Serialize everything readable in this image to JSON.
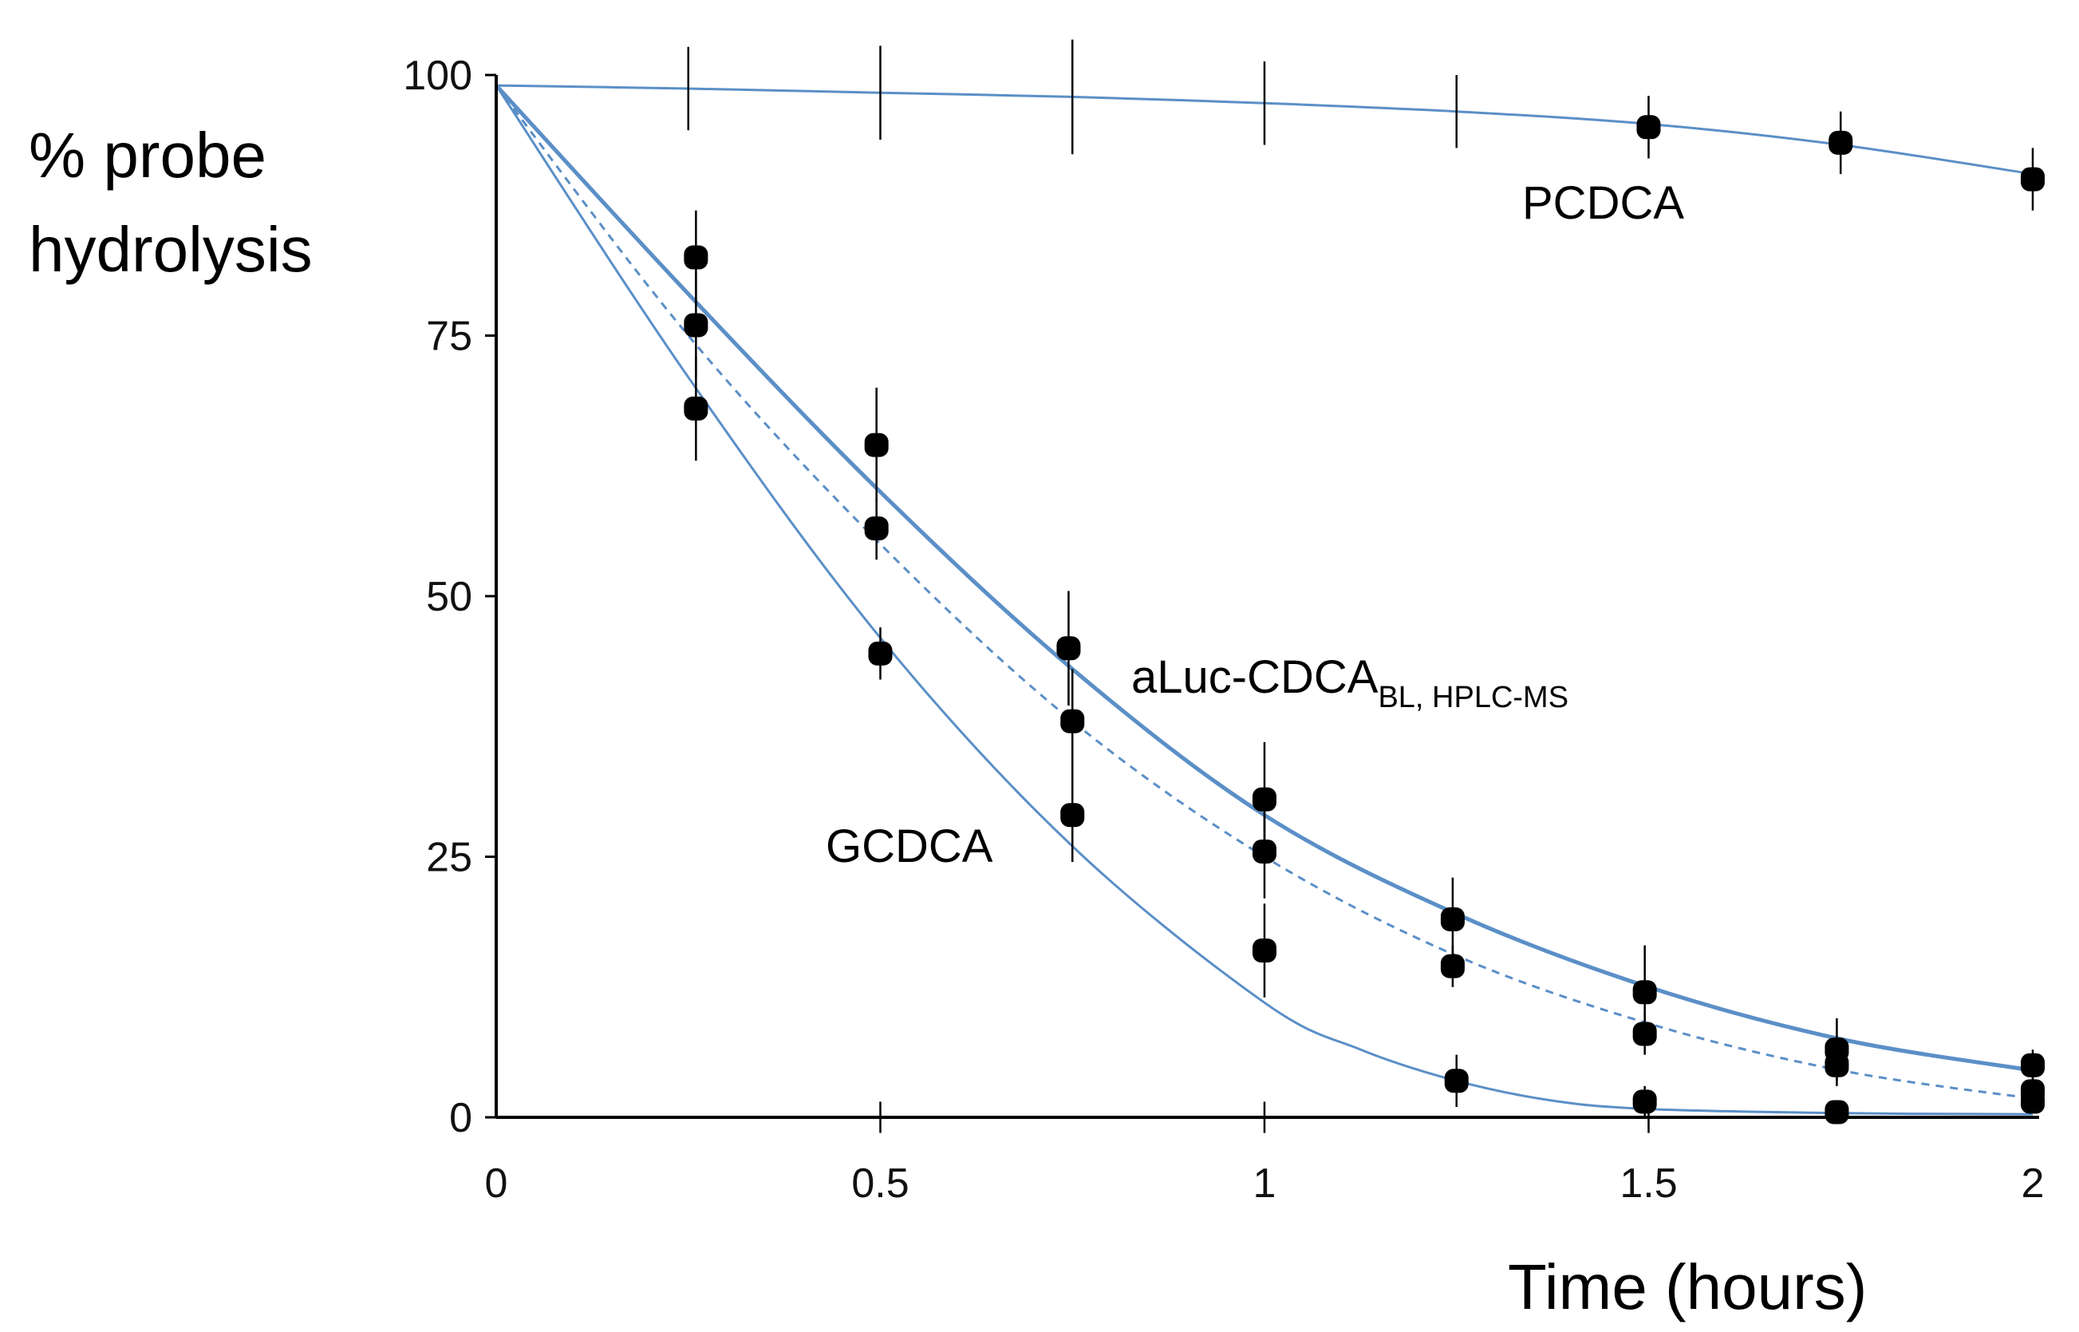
{
  "chart_data": {
    "type": "scatter",
    "title": "",
    "xlabel": "Time (hours)",
    "ylabel": "% probe hydrolysis",
    "ylabel_lines": [
      "% probe",
      "hydrolysis"
    ],
    "xlim": [
      0,
      2
    ],
    "ylim": [
      0,
      100
    ],
    "x_ticks": [
      0,
      0.5,
      1,
      1.5,
      2
    ],
    "x_tick_labels": [
      "0",
      "0.5",
      "1",
      "1.5",
      "2"
    ],
    "y_ticks": [
      0,
      25,
      50,
      75,
      100
    ],
    "y_tick_labels": [
      "0",
      "25",
      "50",
      "75",
      "100"
    ],
    "grid": false,
    "colors": {
      "curve": "#5b8fc7",
      "points": "#000000",
      "errorbars": "#000000"
    },
    "series_labels": {
      "pcdca": "PCDCA",
      "aluc_main": "aLuc-CDCA",
      "aluc_sub": "BL, HPLC-MS",
      "gcdca": "GCDCA"
    },
    "curves": [
      {
        "id": "pcdca",
        "style": "solid",
        "x": [
          0,
          0.25,
          0.5,
          0.75,
          1,
          1.25,
          1.5,
          1.75,
          2
        ],
        "y": [
          99,
          98.7,
          98.3,
          97.9,
          97.3,
          96.5,
          95.3,
          93.3,
          90.5
        ]
      },
      {
        "id": "aluc",
        "style": "solid",
        "x": [
          0,
          0.25,
          0.5,
          0.75,
          1,
          1.25,
          1.5,
          1.75,
          2
        ],
        "y": [
          99,
          79,
          60,
          43,
          29,
          19.5,
          12.5,
          7.5,
          4.5
        ]
      },
      {
        "id": "aluc-ref",
        "style": "dashed",
        "x": [
          0,
          0.25,
          0.5,
          0.75,
          1,
          1.25,
          1.5,
          1.75,
          2
        ],
        "y": [
          99,
          75,
          55,
          38,
          25,
          15.5,
          9,
          4.5,
          1.8
        ]
      },
      {
        "id": "gcdca",
        "style": "solid",
        "x": [
          0,
          0.25,
          0.5,
          0.75,
          1,
          1.125,
          1.25,
          1.375,
          1.5,
          1.75,
          2
        ],
        "y": [
          99,
          71,
          46,
          26,
          11,
          6.5,
          3.5,
          1.6,
          0.8,
          0.4,
          0.3
        ]
      }
    ],
    "points": [
      {
        "x": 0.26,
        "y": 82.5,
        "err": 4.5
      },
      {
        "x": 0.26,
        "y": 76,
        "err": 5
      },
      {
        "x": 0.26,
        "y": 68,
        "err": 5
      },
      {
        "x": 0.495,
        "y": 64.5,
        "err": 5.5
      },
      {
        "x": 0.495,
        "y": 56.5,
        "err": 3
      },
      {
        "x": 0.5,
        "y": 44.5,
        "err": 2.5
      },
      {
        "x": 0.745,
        "y": 45,
        "err": 5.5
      },
      {
        "x": 0.75,
        "y": 38,
        "err": 5
      },
      {
        "x": 0.75,
        "y": 29,
        "err": 4.5
      },
      {
        "x": 1,
        "y": 30.5,
        "err": 5.5
      },
      {
        "x": 1,
        "y": 25.5,
        "err": 4.5
      },
      {
        "x": 1,
        "y": 16,
        "err": 4.5
      },
      {
        "x": 1.245,
        "y": 19,
        "err": 4
      },
      {
        "x": 1.245,
        "y": 14.5,
        "err": 2
      },
      {
        "x": 1.25,
        "y": 3.5,
        "err": 2.5
      },
      {
        "x": 1.495,
        "y": 12,
        "err": 4.5
      },
      {
        "x": 1.495,
        "y": 8,
        "err": 2
      },
      {
        "x": 1.495,
        "y": 1.5,
        "err": 1.5
      },
      {
        "x": 1.745,
        "y": 6.5,
        "err": 3
      },
      {
        "x": 1.745,
        "y": 5,
        "err": 2
      },
      {
        "x": 1.745,
        "y": 0.5,
        "err": 1
      },
      {
        "x": 2,
        "y": 5,
        "err": 1.5
      },
      {
        "x": 2,
        "y": 2.5,
        "err": 1.5
      },
      {
        "x": 2,
        "y": 1.5,
        "err": 1
      },
      {
        "x": 1.5,
        "y": 95,
        "err": 3
      },
      {
        "x": 1.75,
        "y": 93.5,
        "err": 3
      },
      {
        "x": 2,
        "y": 90,
        "err": 3
      }
    ],
    "bare_errorbars": [
      {
        "x": 0.25,
        "y": 98.7,
        "err": 4
      },
      {
        "x": 0.5,
        "y": 98.3,
        "err": 4.5
      },
      {
        "x": 0.75,
        "y": 97.9,
        "err": 5.5
      },
      {
        "x": 1,
        "y": 97.3,
        "err": 4
      },
      {
        "x": 1.25,
        "y": 96.5,
        "err": 3.5
      },
      {
        "x": 0.5,
        "y": 0,
        "err": 1.5
      },
      {
        "x": 1,
        "y": 0,
        "err": 1.5
      },
      {
        "x": 1.5,
        "y": 0,
        "err": 1.5
      }
    ]
  }
}
